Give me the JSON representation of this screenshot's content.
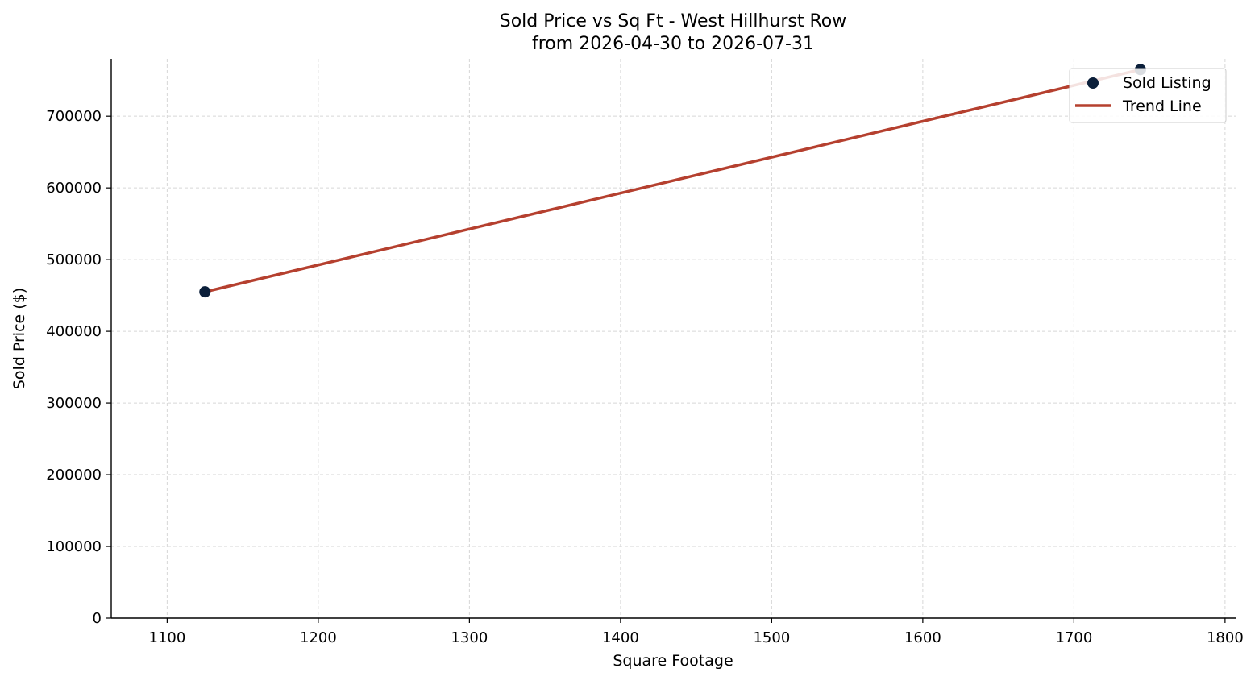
{
  "chart_data": {
    "type": "scatter",
    "title": "Sold Price vs Sq Ft - West Hillhurst Row",
    "subtitle": "from 2026-04-30 to 2026-07-31",
    "xlabel": "Square Footage",
    "ylabel": "Sold Price ($)",
    "xlim": [
      1063,
      1807
    ],
    "ylim": [
      0,
      780000
    ],
    "x_ticks": [
      1100,
      1200,
      1300,
      1400,
      1500,
      1600,
      1700,
      1800
    ],
    "y_ticks": [
      0,
      100000,
      200000,
      300000,
      400000,
      500000,
      600000,
      700000
    ],
    "grid": true,
    "legend_position": "top-right",
    "series": [
      {
        "name": "Sold Listing",
        "kind": "scatter",
        "color": "#0b1f3a",
        "points": [
          {
            "x": 1125,
            "y": 455000
          },
          {
            "x": 1744,
            "y": 765000
          }
        ]
      },
      {
        "name": "Trend Line",
        "kind": "line",
        "color": "#b5402f",
        "points": [
          {
            "x": 1125,
            "y": 455000
          },
          {
            "x": 1744,
            "y": 765000
          }
        ]
      }
    ]
  }
}
